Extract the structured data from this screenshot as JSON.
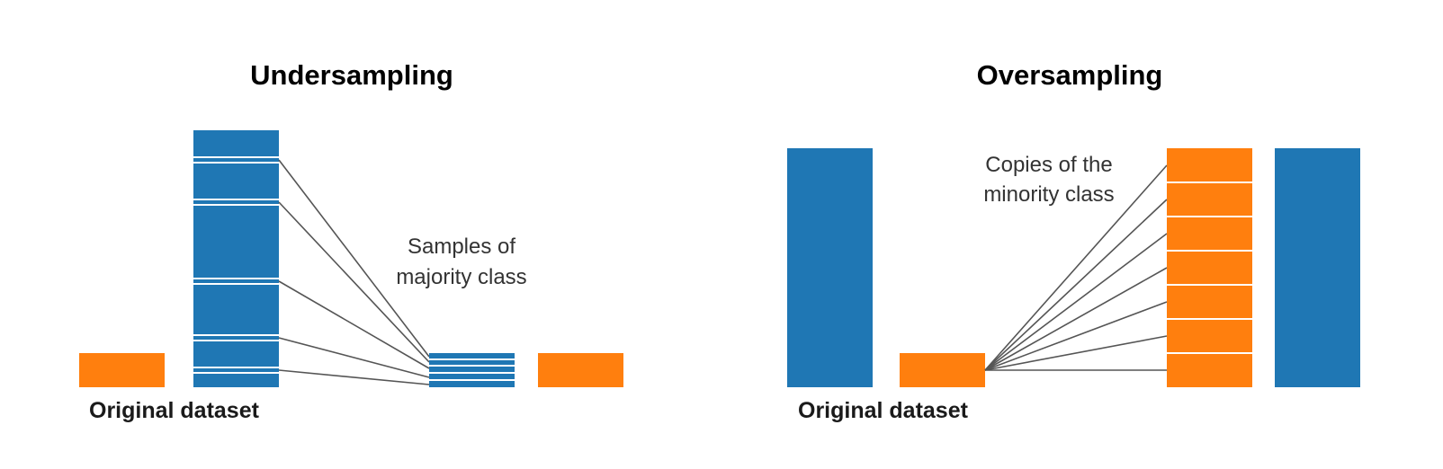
{
  "colors": {
    "majority": "#1f77b4",
    "minority": "#ff7f0e",
    "connector": "#555555",
    "divider": "#ffffff"
  },
  "undersampling": {
    "title": "Undersampling",
    "original_label": "Original dataset",
    "annotation_line1": "Samples of",
    "annotation_line2": "majority class"
  },
  "oversampling": {
    "title": "Oversampling",
    "original_label": "Original dataset",
    "annotation_line1": "Copies of the",
    "annotation_line2": "minority class"
  }
}
